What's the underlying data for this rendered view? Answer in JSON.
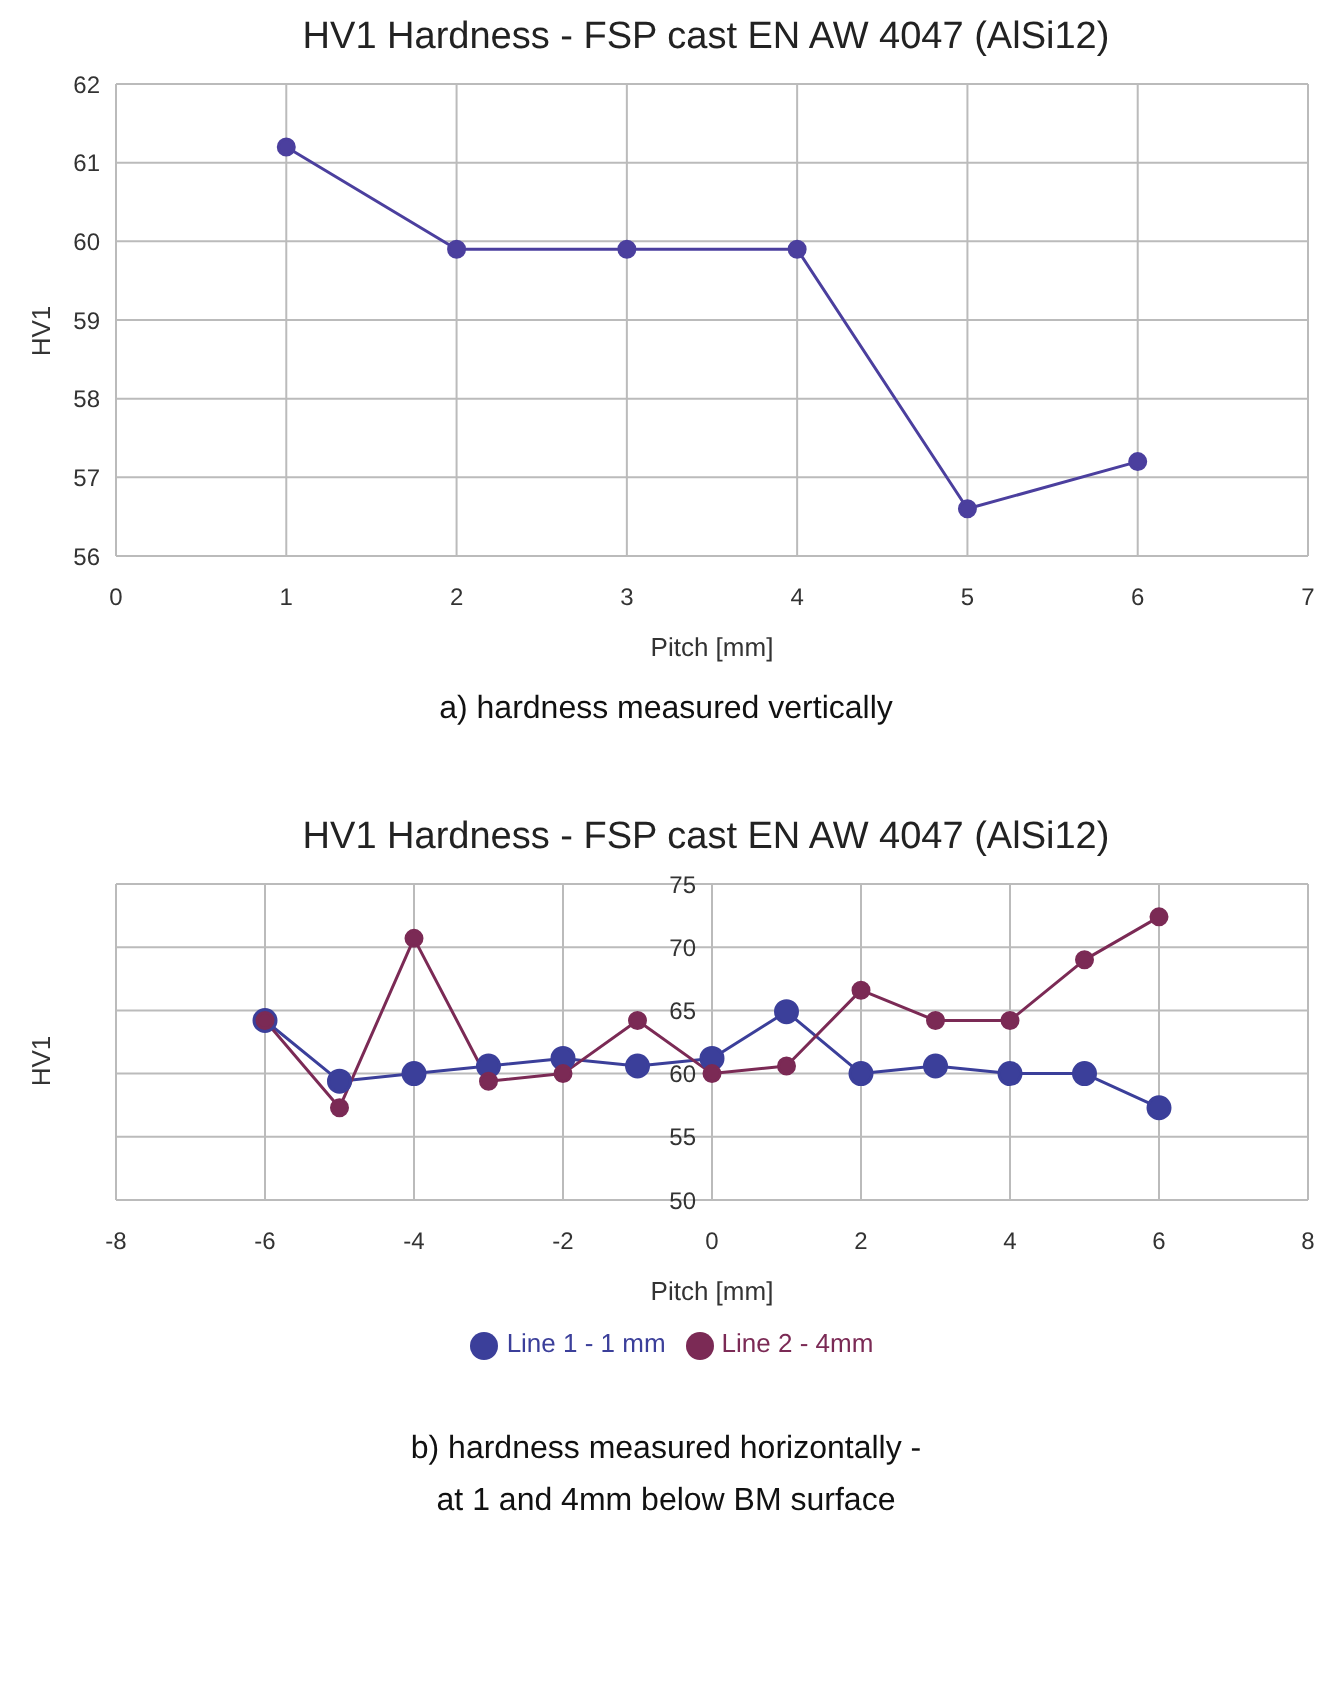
{
  "chart_data": [
    {
      "type": "line",
      "title": "HV1 Hardness - FSP cast EN AW 4047 (AlSi12)",
      "xlabel": "Pitch [mm]",
      "ylabel": "HV1",
      "annotations": [
        "a) hardness measured vertically"
      ],
      "x": [
        1,
        2,
        3,
        4,
        5,
        6
      ],
      "series": [
        {
          "color": "#4b3f9e",
          "values": [
            61.2,
            59.9,
            59.9,
            59.9,
            56.6,
            57.2
          ]
        }
      ],
      "xlim": [
        0,
        7
      ],
      "xticks": [
        0,
        1,
        2,
        3,
        4,
        5,
        6,
        7
      ],
      "ylim": [
        56,
        62
      ],
      "yticks": [
        56,
        57,
        58,
        59,
        60,
        61,
        62
      ],
      "grid": true,
      "marker": "circle",
      "line_style": "solid"
    },
    {
      "type": "line",
      "title": "HV1 Hardness - FSP cast EN AW 4047 (AlSi12)",
      "xlabel": "Pitch [mm]",
      "ylabel": "HV1",
      "annotations": [
        "b) hardness measured horizontally -\nat 1 and 4mm below BM surface"
      ],
      "x": [
        -6,
        -5,
        -4,
        -3,
        -2,
        -1,
        0,
        1,
        2,
        3,
        4,
        5,
        6
      ],
      "series": [
        {
          "name": "Line 1 - 1 mm",
          "color": "#3b3f9a",
          "values": [
            64.2,
            59.4,
            60.0,
            60.6,
            61.2,
            60.6,
            61.2,
            64.9,
            60.0,
            60.6,
            60.0,
            60.0,
            57.3
          ]
        },
        {
          "name": "Line 2 - 4mm",
          "color": "#7b2a55",
          "values": [
            64.2,
            57.3,
            70.7,
            59.4,
            60.0,
            64.2,
            60.0,
            60.6,
            66.6,
            64.2,
            64.2,
            69.0,
            72.4
          ]
        }
      ],
      "xlim": [
        -8,
        8
      ],
      "xticks": [
        -8,
        -6,
        -4,
        -2,
        0,
        2,
        4,
        6,
        8
      ],
      "ylim": [
        50,
        75
      ],
      "yticks": [
        50,
        55,
        60,
        65,
        70,
        75
      ],
      "grid": true,
      "legend": "bottom",
      "marker": "circle",
      "line_style": "solid"
    }
  ]
}
